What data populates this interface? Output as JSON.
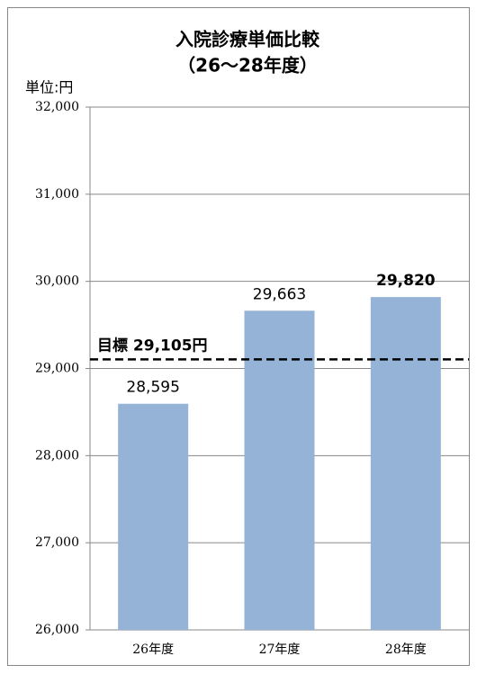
{
  "chart_data": {
    "type": "bar",
    "title": "入院診療単価比較",
    "subtitle": "（26〜28年度）",
    "unit_label": "単位:円",
    "categories": [
      "26年度",
      "27年度",
      "28年度"
    ],
    "values": [
      28595,
      29663,
      29820
    ],
    "value_labels": [
      "28,595",
      "29,663",
      "29,820"
    ],
    "color": "#95b3d7",
    "ylim": [
      26000,
      32000
    ],
    "yticks": [
      {
        "value": 26000,
        "label": "26,000"
      },
      {
        "value": 27000,
        "label": "27,000"
      },
      {
        "value": 28000,
        "label": "28,000"
      },
      {
        "value": 29000,
        "label": "29,000"
      },
      {
        "value": 30000,
        "label": "30,000"
      },
      {
        "value": 31000,
        "label": "31,000"
      },
      {
        "value": 32000,
        "label": "32,000"
      }
    ],
    "grid": true,
    "target": {
      "value": 29105,
      "label": "目標 29,105円"
    }
  }
}
